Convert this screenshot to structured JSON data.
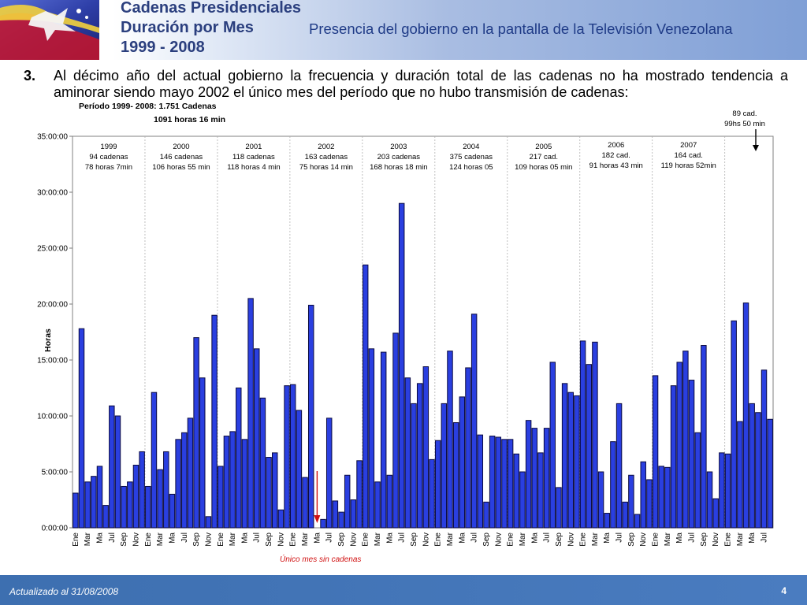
{
  "header": {
    "title_lines": [
      "Cadenas Presidenciales",
      "Duración por Mes",
      "1999 - 2008"
    ],
    "subtitle": "Presencia del gobierno en la pantalla de la Televisión Venezolana",
    "logo": "flag-star-logo"
  },
  "bullet": {
    "number": "3.",
    "text": "Al décimo año del actual gobierno la frecuencia y duración total de las cadenas no ha mostrado tendencia a aminorar siendo mayo 2002 el único mes del período que no hubo transmisión de cadenas:"
  },
  "chart_data": {
    "type": "bar",
    "title_lines": [
      "Período 1999- 2008: 1.751 Cadenas",
      "1091 horas 16 min"
    ],
    "ylabel": "Horas",
    "xlabel": "",
    "y_unit": "hours",
    "ylim": [
      0,
      35
    ],
    "y_ticks": [
      "0:00:00",
      "5:00:00",
      "10:00:00",
      "15:00:00",
      "20:00:00",
      "25:00:00",
      "30:00:00",
      "35:00:00"
    ],
    "bar_color": "#2a3fe0",
    "grid": false,
    "legend": "none",
    "month_abbrevs": [
      "Ene",
      "Mar",
      "Ma",
      "Jul",
      "Sep",
      "Nov"
    ],
    "start": "1999-01",
    "categories": [
      "1999-01",
      "1999-02",
      "1999-03",
      "1999-04",
      "1999-05",
      "1999-06",
      "1999-07",
      "1999-08",
      "1999-09",
      "1999-10",
      "1999-11",
      "1999-12",
      "2000-01",
      "2000-02",
      "2000-03",
      "2000-04",
      "2000-05",
      "2000-06",
      "2000-07",
      "2000-08",
      "2000-09",
      "2000-10",
      "2000-11",
      "2000-12",
      "2001-01",
      "2001-02",
      "2001-03",
      "2001-04",
      "2001-05",
      "2001-06",
      "2001-07",
      "2001-08",
      "2001-09",
      "2001-10",
      "2001-11",
      "2001-12",
      "2002-01",
      "2002-02",
      "2002-03",
      "2002-04",
      "2002-05",
      "2002-06",
      "2002-07",
      "2002-08",
      "2002-09",
      "2002-10",
      "2002-11",
      "2002-12",
      "2003-01",
      "2003-02",
      "2003-03",
      "2003-04",
      "2003-05",
      "2003-06",
      "2003-07",
      "2003-08",
      "2003-09",
      "2003-10",
      "2003-11",
      "2003-12",
      "2004-01",
      "2004-02",
      "2004-03",
      "2004-04",
      "2004-05",
      "2004-06",
      "2004-07",
      "2004-08",
      "2004-09",
      "2004-10",
      "2004-11",
      "2004-12",
      "2005-01",
      "2005-02",
      "2005-03",
      "2005-04",
      "2005-05",
      "2005-06",
      "2005-07",
      "2005-08",
      "2005-09",
      "2005-10",
      "2005-11",
      "2005-12",
      "2006-01",
      "2006-02",
      "2006-03",
      "2006-04",
      "2006-05",
      "2006-06",
      "2006-07",
      "2006-08",
      "2006-09",
      "2006-10",
      "2006-11",
      "2006-12",
      "2007-01",
      "2007-02",
      "2007-03",
      "2007-04",
      "2007-05",
      "2007-06",
      "2007-07",
      "2007-08",
      "2007-09",
      "2007-10",
      "2007-11",
      "2007-12",
      "2008-01",
      "2008-02",
      "2008-03",
      "2008-04",
      "2008-05",
      "2008-06",
      "2008-07",
      "2008-08"
    ],
    "values": [
      3.1,
      17.8,
      4.1,
      4.6,
      5.5,
      2.0,
      10.9,
      10.0,
      3.7,
      4.1,
      5.6,
      6.8,
      3.7,
      12.1,
      5.2,
      6.8,
      3.0,
      7.9,
      8.5,
      9.8,
      17.0,
      13.4,
      1.0,
      19.0,
      5.5,
      8.2,
      8.6,
      12.5,
      7.9,
      20.5,
      16.0,
      11.6,
      6.3,
      6.7,
      1.6,
      12.7,
      12.8,
      10.5,
      4.5,
      19.9,
      0,
      0.75,
      9.8,
      2.4,
      1.4,
      4.7,
      2.5,
      6.0,
      23.5,
      16.0,
      4.1,
      15.7,
      4.7,
      17.4,
      29.0,
      13.4,
      11.1,
      12.9,
      14.4,
      6.1,
      7.8,
      11.1,
      15.8,
      9.4,
      11.7,
      14.3,
      19.1,
      8.3,
      2.3,
      8.2,
      8.1,
      7.9,
      7.9,
      6.6,
      5.0,
      9.6,
      8.9,
      6.7,
      8.9,
      14.8,
      3.6,
      12.9,
      12.1,
      11.8,
      16.7,
      14.6,
      16.6,
      5.0,
      1.3,
      7.7,
      11.1,
      2.3,
      4.7,
      1.2,
      5.9,
      4.3,
      13.6,
      5.5,
      5.4,
      12.7,
      14.8,
      15.8,
      13.2,
      8.5,
      16.3,
      5.0,
      2.6,
      6.7,
      6.6,
      18.5,
      9.5,
      20.1,
      11.1,
      10.3,
      14.1,
      9.7
    ],
    "year_annotations": [
      {
        "year": "1999",
        "line1": "94 cadenas",
        "line2": "78 horas 7min"
      },
      {
        "year": "2000",
        "line1": "146 cadenas",
        "line2": "106 horas 55 min"
      },
      {
        "year": "2001",
        "line1": "118 cadenas",
        "line2": "118 horas 4 min"
      },
      {
        "year": "2002",
        "line1": "163 cadenas",
        "line2": "75 horas 14 min"
      },
      {
        "year": "2003",
        "line1": "203 cadenas",
        "line2": "168 horas 18 min"
      },
      {
        "year": "2004",
        "line1": "375 cadenas",
        "line2": "124 horas 05"
      },
      {
        "year": "2005",
        "line1": "217 cad.",
        "line2": "109 horas 05 min"
      },
      {
        "year": "2006",
        "line1": "182 cad.",
        "line2": "91 horas 43 min"
      },
      {
        "year": "2007",
        "line1": "164 cad.",
        "line2": "119 horas 52min"
      }
    ],
    "note_2008": {
      "line1": "89 cad.",
      "line2": "99hs 50 min"
    },
    "no_cadena_month": "2002-05",
    "no_cadena_label": "Único mes sin cadenas",
    "no_cadena_color": "#d01010"
  },
  "footer": {
    "updated": "Actualizado al 31/08/2008",
    "page": "4"
  }
}
